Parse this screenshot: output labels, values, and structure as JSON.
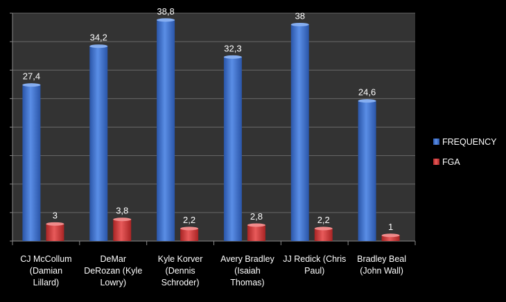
{
  "chart_data": {
    "type": "bar",
    "categories": [
      [
        "CJ McCollum",
        "(Damian",
        "Lillard)"
      ],
      [
        "DeMar",
        "DeRozan (Kyle",
        "Lowry)"
      ],
      [
        "Kyle Korver",
        "(Dennis",
        "Schroder)"
      ],
      [
        "Avery Bradley",
        "(Isaiah",
        "Thomas)"
      ],
      [
        "JJ Redick (Chris",
        "Paul)"
      ],
      [
        "Bradley Beal",
        "(John Wall)"
      ]
    ],
    "series": [
      {
        "name": "FREQUENCY",
        "values": [
          27.4,
          34.2,
          38.8,
          32.3,
          38,
          24.6
        ],
        "labels": [
          "27,4",
          "34,2",
          "38,8",
          "32,3",
          "38",
          "24,6"
        ],
        "color": "#3f72d1"
      },
      {
        "name": "FGA",
        "values": [
          3,
          3.8,
          2.2,
          2.8,
          2.2,
          1
        ],
        "labels": [
          "3",
          "3,8",
          "2,2",
          "2,8",
          "2,2",
          "1"
        ],
        "color": "#d83a3a"
      }
    ],
    "ylim": [
      0,
      40
    ],
    "grid": true,
    "legend_position": "right",
    "background": "#333333"
  }
}
